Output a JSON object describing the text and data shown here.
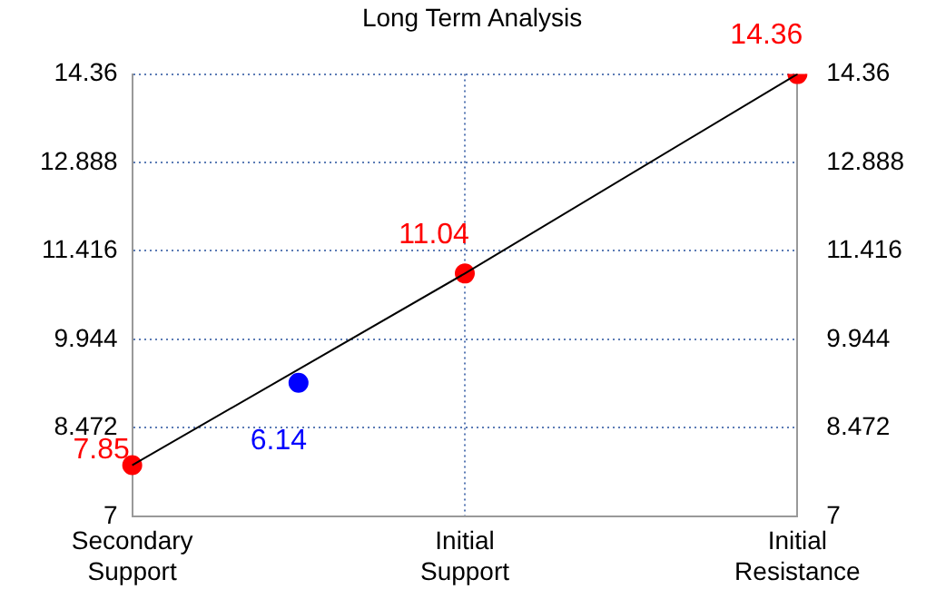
{
  "chart_data": {
    "type": "line",
    "title": "Long Term Analysis",
    "categories": [
      "Secondary\nSupport",
      null,
      "Initial\nSupport",
      null,
      "Initial\nResistance"
    ],
    "ylim": [
      7,
      14.36
    ],
    "yticks": [
      7,
      8.472,
      9.944,
      11.416,
      12.888,
      14.36
    ],
    "y2lim": [
      7,
      14.36
    ],
    "y2ticks": [
      7,
      8.472,
      9.944,
      11.416,
      12.888,
      14.36
    ],
    "grid": true,
    "series": [
      {
        "color": "#000000",
        "values": [
          7.85,
          null,
          11.04,
          null,
          14.36
        ],
        "marker": "none"
      },
      {
        "type": "scatter",
        "color": "#ff0000",
        "values": [
          7.85,
          null,
          11.04,
          null,
          14.36
        ],
        "marker": "circle",
        "value_labels": [
          "7.85",
          null,
          "11.04",
          null,
          "14.36"
        ]
      },
      {
        "type": "scatter",
        "color": "#0000ff",
        "values": [
          null,
          9.22,
          null,
          null,
          null
        ],
        "marker": "circle"
      }
    ],
    "annotations": [
      "6.14"
    ]
  }
}
